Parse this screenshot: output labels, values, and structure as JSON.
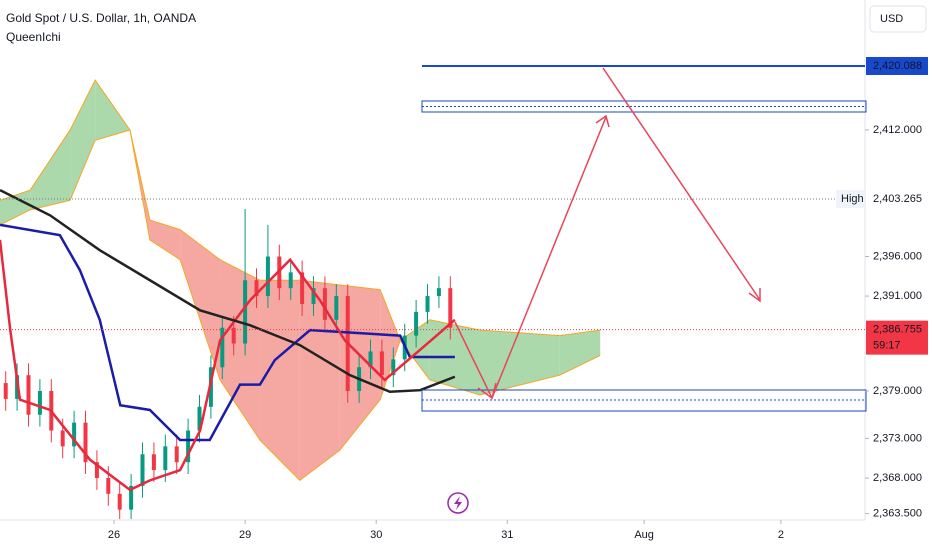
{
  "chart_data": {
    "type": "candlestick",
    "title": "Gold Spot / U.S. Dollar, 1h, OANDA",
    "subtitle": "QueenIchi",
    "currency": "USD",
    "ylim": [
      2362.69,
      2428.43
    ],
    "yticks": [
      {
        "value": 2363.5,
        "label": "2,363.500"
      },
      {
        "value": 2368,
        "label": "2,368.000"
      },
      {
        "value": 2373,
        "label": "2,373.000"
      },
      {
        "value": 2379,
        "label": "2,379.000"
      },
      {
        "value": 2391,
        "label": "2,391.000"
      },
      {
        "value": 2396,
        "label": "2,396.000"
      },
      {
        "value": 2412,
        "label": "2,412.000"
      }
    ],
    "xlim": [
      0,
      151.75
    ],
    "xticks": [
      {
        "value": 20,
        "label": "26"
      },
      {
        "value": 43,
        "label": "29"
      },
      {
        "value": 66,
        "label": "30"
      },
      {
        "value": 89,
        "label": "31"
      },
      {
        "value": 113,
        "label": "Aug"
      },
      {
        "value": 137,
        "label": "2"
      }
    ],
    "candles": {
      "x": [
        1,
        3,
        5,
        7,
        9,
        11,
        13,
        15,
        17,
        19,
        21,
        23,
        25,
        27,
        29,
        31,
        33,
        35,
        37,
        39,
        41,
        43,
        45,
        47,
        49,
        51,
        53,
        55,
        57,
        59,
        61,
        63,
        65,
        67,
        69,
        71,
        73,
        75,
        77,
        79
      ],
      "open": [
        2380,
        2378,
        2381,
        2376,
        2379,
        2374,
        2372,
        2375,
        2370,
        2368,
        2366,
        2364,
        2367,
        2371,
        2369,
        2372,
        2370,
        2374,
        2377,
        2382,
        2387,
        2385,
        2393,
        2391,
        2396,
        2392,
        2394,
        2390,
        2392,
        2388,
        2391,
        2379,
        2382,
        2384,
        2381,
        2383,
        2386,
        2389,
        2391,
        2392
      ],
      "high": [
        2381.5,
        2382.5,
        2382.5,
        2380.5,
        2380.5,
        2375.5,
        2376.5,
        2376.5,
        2371.5,
        2369.5,
        2367.5,
        2368.5,
        2372.5,
        2372.5,
        2373.5,
        2373.5,
        2375.5,
        2378.5,
        2383.5,
        2388.5,
        2388.5,
        2402,
        2394.5,
        2400,
        2397.5,
        2395.5,
        2395.5,
        2393.5,
        2393.5,
        2392.5,
        2392.5,
        2383.5,
        2385.5,
        2385.5,
        2384.5,
        2387.5,
        2390.5,
        2392.5,
        2393.5,
        2393.5
      ],
      "low": [
        2376.5,
        2376.5,
        2374.5,
        2374.5,
        2372.5,
        2370.5,
        2370.5,
        2368.5,
        2366.5,
        2364.5,
        2362.8,
        2362.8,
        2365.5,
        2367.5,
        2367.5,
        2368.5,
        2368.5,
        2372.5,
        2375.5,
        2380.5,
        2383.5,
        2383.5,
        2389.5,
        2389.5,
        2390.5,
        2390.5,
        2388.5,
        2388.5,
        2386.5,
        2386.5,
        2377.5,
        2377.5,
        2380.5,
        2379.5,
        2379.5,
        2381.5,
        2384.5,
        2387.5,
        2389.5,
        2385.5
      ],
      "close": [
        2378,
        2381,
        2376,
        2379,
        2374,
        2372,
        2375,
        2370,
        2368,
        2366,
        2364,
        2367,
        2371,
        2369,
        2372,
        2370,
        2374,
        2377,
        2382,
        2387,
        2385,
        2393,
        2391,
        2396,
        2392,
        2394,
        2390,
        2392,
        2388,
        2391,
        2379,
        2382,
        2384,
        2381,
        2383,
        2386,
        2389,
        2391,
        2392,
        2387
      ],
      "up_color": "#089981",
      "down_color": "#f23645"
    },
    "lines": [
      {
        "color": "#1c1ca8",
        "x": [
          0,
          10.5,
          14,
          17.5,
          21.1,
          26.3,
          31.6,
          36.8,
          42.1,
          45.6,
          48.2,
          54.4,
          70.2,
          71.9,
          79.8
        ],
        "values": [
          2400,
          2398.7,
          2394.3,
          2388,
          2377.2,
          2376.6,
          2372.8,
          2372.8,
          2379.8,
          2379.8,
          2382.9,
          2386.7,
          2386,
          2383.3,
          2383.3
        ]
      },
      {
        "color": "#e8283c",
        "x": [
          0,
          1.8,
          3.5,
          8.8,
          15.8,
          22.8,
          26.3,
          31.6,
          35.1,
          38.6,
          43.9,
          50.9,
          56.1,
          60.5,
          67.5,
          73.7,
          79.8
        ],
        "values": [
          2398.1,
          2386.7,
          2377.9,
          2376.6,
          2370.3,
          2366.5,
          2367.7,
          2369,
          2374,
          2385.4,
          2390.5,
          2395.6,
          2390.5,
          2385.4,
          2380.4,
          2384.2,
          2388
        ]
      },
      {
        "color": "#222222",
        "x": [
          0,
          8.8,
          17.5,
          26.3,
          35.1,
          43.9,
          52.6,
          61.4,
          68.4,
          73.7,
          79.8
        ],
        "values": [
          2404.4,
          2401.2,
          2396.8,
          2393,
          2389.2,
          2387.3,
          2384.8,
          2381,
          2378.9,
          2379.1,
          2380.8
        ]
      }
    ],
    "cloud": {
      "x": [
        0,
        5.3,
        12.3,
        16.7,
        22.8,
        26.3,
        31.6,
        38.6,
        45.6,
        52.6,
        59.6,
        66.7,
        70.2,
        75.4,
        84.2,
        98.2,
        105.3
      ],
      "span_a": [
        2403.1,
        2404.4,
        2412,
        2418.3,
        2412,
        2398.1,
        2395.6,
        2380.4,
        2372.8,
        2367.7,
        2371.5,
        2377.9,
        2385.4,
        2388,
        2386.7,
        2386,
        2386.7
      ],
      "span_b": [
        2400,
        2401.9,
        2403.1,
        2410.7,
        2412,
        2400.6,
        2399.4,
        2395.6,
        2393,
        2393,
        2392.4,
        2391.8,
        2385.4,
        2380.4,
        2378.5,
        2381,
        2383.5
      ],
      "bull_color": "#8fcc8f",
      "bear_color": "#f28b82"
    },
    "level": {
      "value": 2420.088,
      "label": "2,420.088",
      "color": "#1848cc"
    },
    "high": {
      "name": "High",
      "value": 2403.265,
      "label": "2,403.265"
    },
    "last": {
      "value": 2386.755,
      "label": "2,386.755",
      "countdown": "59:17",
      "color": "#f23645"
    }
  }
}
